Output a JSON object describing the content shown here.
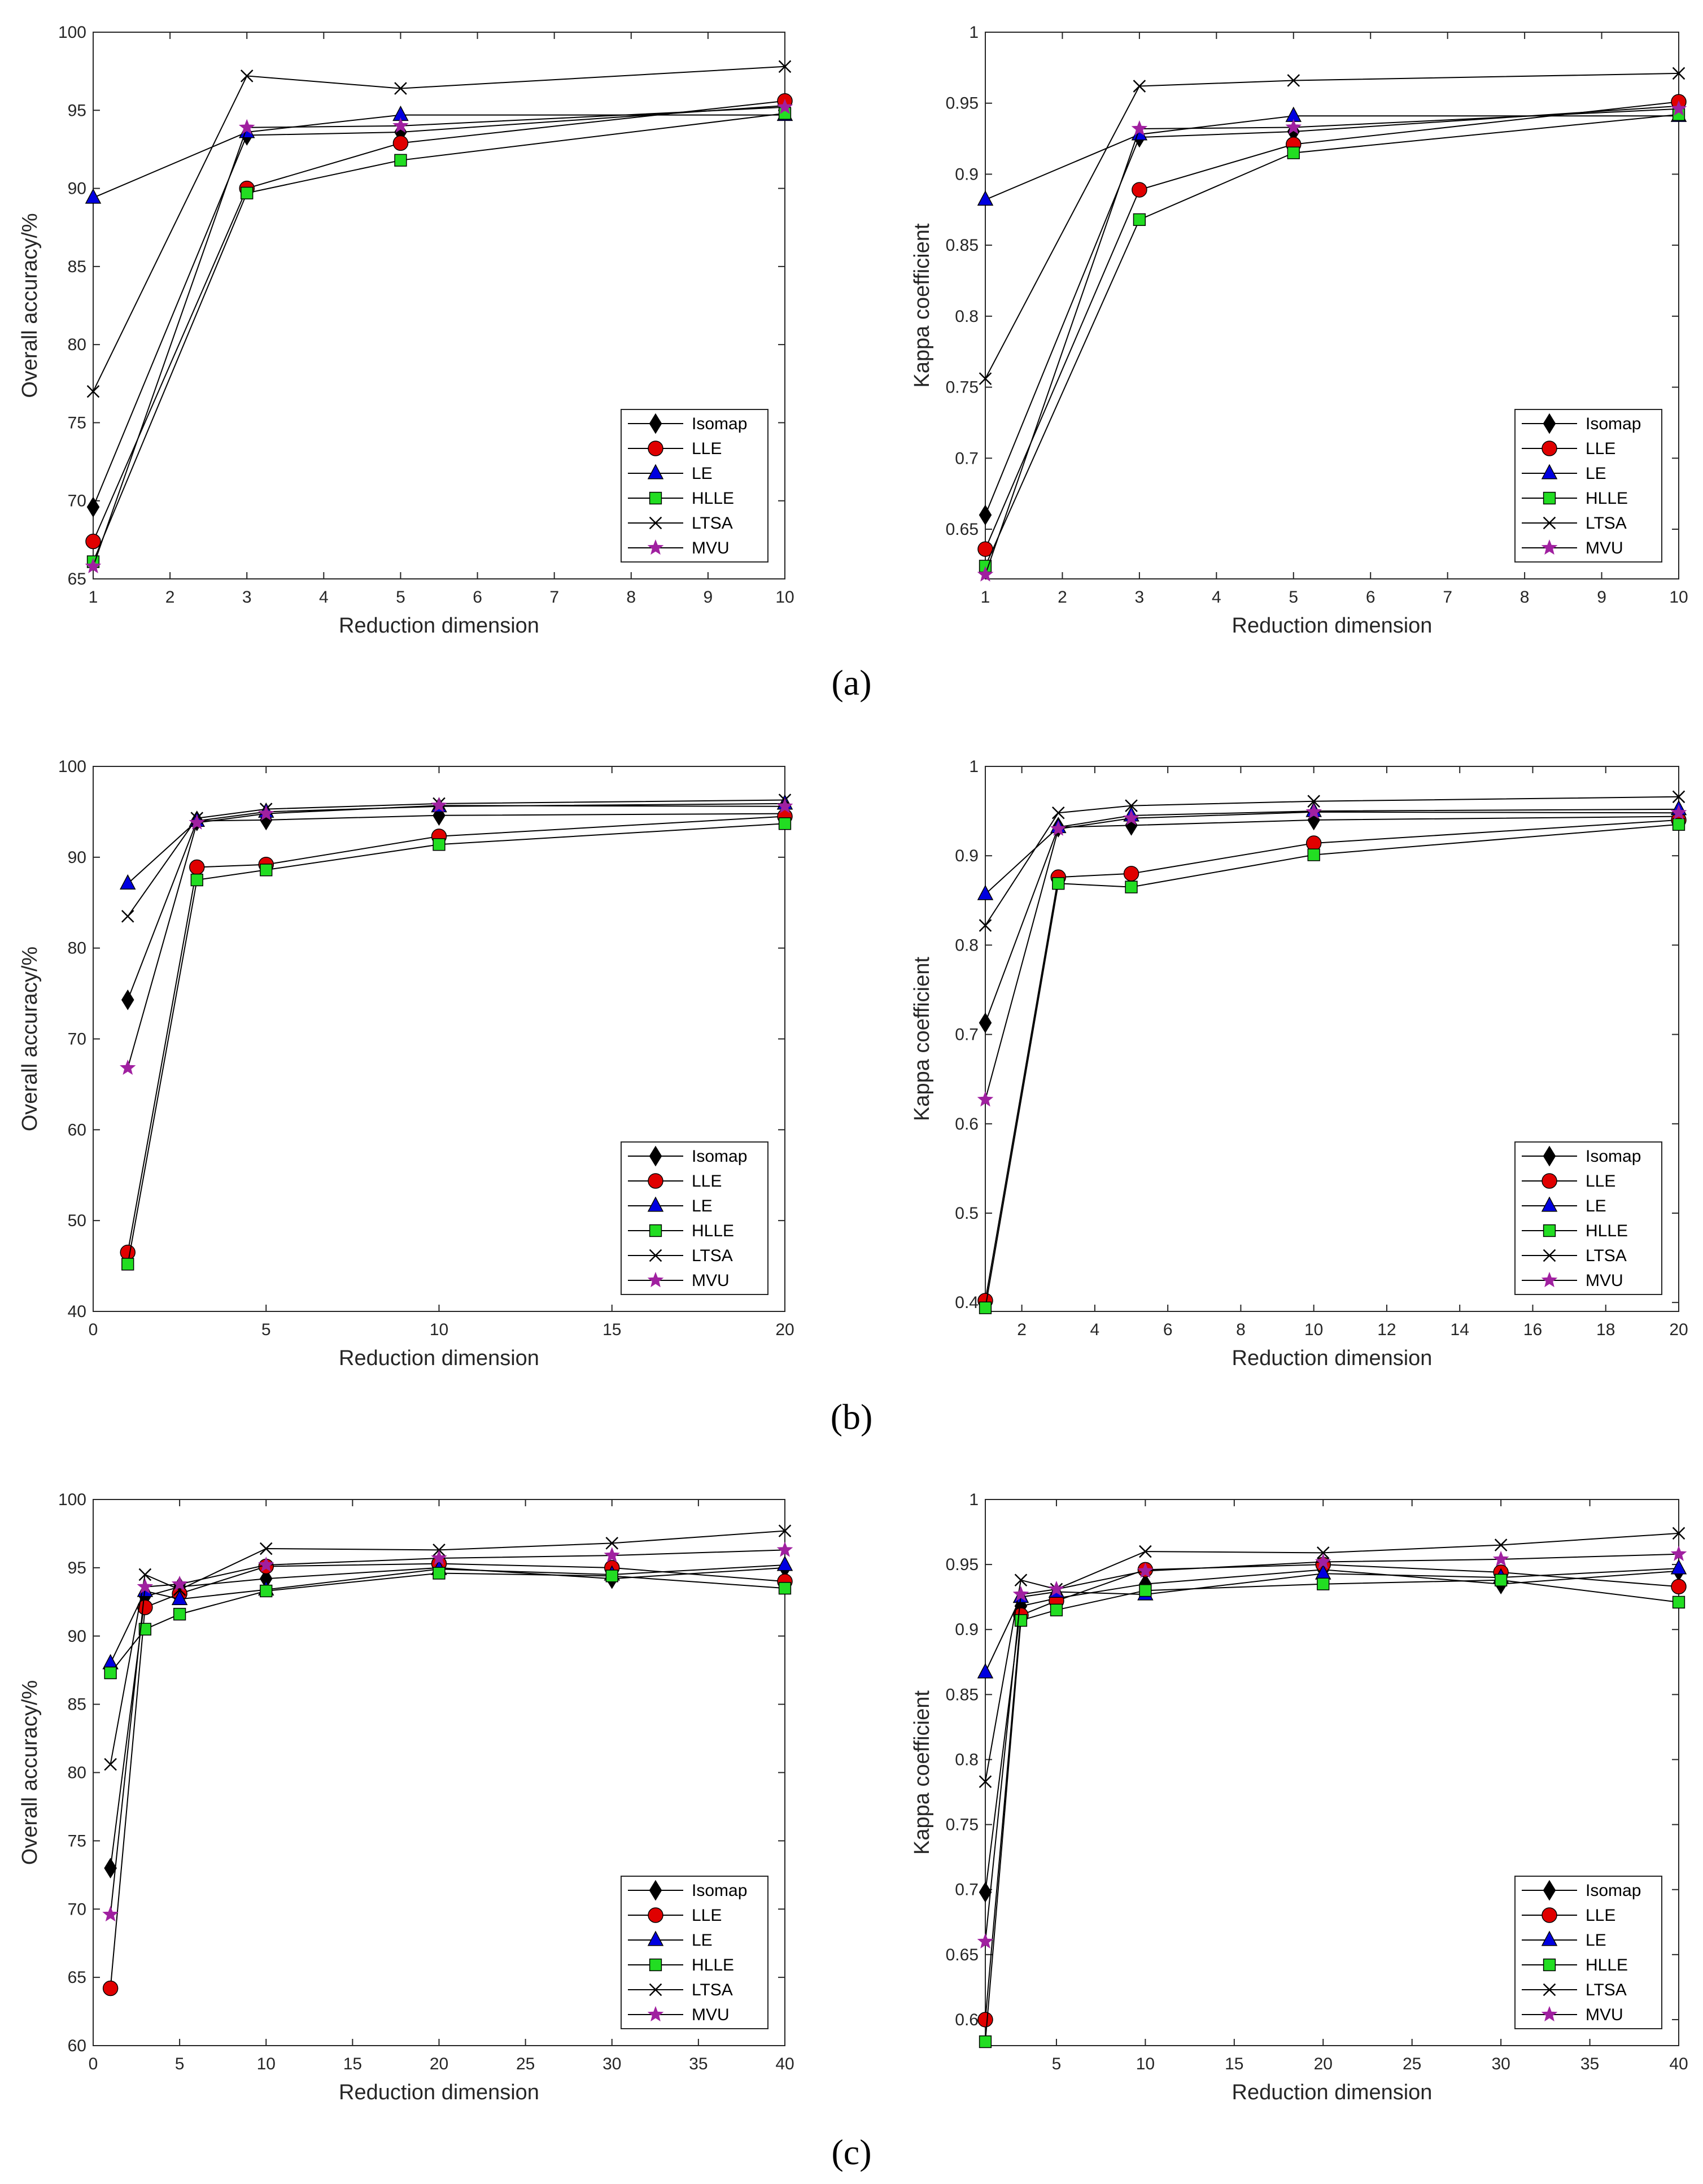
{
  "legend_style": {
    "Isomap": {
      "marker": "diamond",
      "fill": "#000000"
    },
    "LLE": {
      "marker": "circle",
      "fill": "#e00000"
    },
    "LE": {
      "marker": "triangle",
      "fill": "#0000e0"
    },
    "HLLE": {
      "marker": "square",
      "fill": "#22dd22"
    },
    "LTSA": {
      "marker": "x",
      "fill": "#000000"
    },
    "MVU": {
      "marker": "star",
      "fill": "#a020a0"
    }
  },
  "panel_labels": [
    "(a)",
    "(b)",
    "(c)"
  ],
  "chart_data": [
    {
      "type": "line",
      "panel": "a",
      "xlabel": "Reduction dimension",
      "ylabel": "Overall accuracy/%",
      "xlim": [
        1,
        10
      ],
      "ylim": [
        65,
        100
      ],
      "xticks": [
        1,
        2,
        3,
        4,
        5,
        6,
        7,
        8,
        9,
        10
      ],
      "xtick_labels": [
        "1",
        "2",
        "3",
        "4",
        "5",
        "6",
        "7",
        "8",
        "9",
        "10"
      ],
      "yticks": [
        65,
        70,
        75,
        80,
        85,
        90,
        95,
        100
      ],
      "ytick_labels": [
        "65",
        "70",
        "75",
        "80",
        "85",
        "90",
        "95",
        "100"
      ],
      "x": [
        1,
        3,
        5,
        10
      ],
      "series": [
        {
          "name": "Isomap",
          "values": [
            69.6,
            93.4,
            93.6,
            95.3
          ]
        },
        {
          "name": "LLE",
          "values": [
            67.4,
            90.0,
            92.9,
            95.6
          ]
        },
        {
          "name": "LE",
          "values": [
            89.4,
            93.6,
            94.7,
            94.7
          ]
        },
        {
          "name": "HLLE",
          "values": [
            66.1,
            89.7,
            91.8,
            94.8
          ]
        },
        {
          "name": "LTSA",
          "values": [
            77.0,
            97.2,
            96.4,
            97.8
          ]
        },
        {
          "name": "MVU",
          "values": [
            65.8,
            93.9,
            94.0,
            95.2
          ]
        }
      ]
    },
    {
      "type": "line",
      "panel": "a",
      "xlabel": "Reduction dimension",
      "ylabel": "Kappa coefficient",
      "xlim": [
        1,
        10
      ],
      "ylim": [
        0.615,
        1.0
      ],
      "xticks": [
        1,
        2,
        3,
        4,
        5,
        6,
        7,
        8,
        9,
        10
      ],
      "xtick_labels": [
        "1",
        "2",
        "3",
        "4",
        "5",
        "6",
        "7",
        "8",
        "9",
        "10"
      ],
      "yticks": [
        0.65,
        0.7,
        0.75,
        0.8,
        0.85,
        0.9,
        0.95,
        1
      ],
      "ytick_labels": [
        "0.65",
        "0.7",
        "0.75",
        "0.8",
        "0.85",
        "0.9",
        "0.95",
        "1"
      ],
      "x": [
        1,
        3,
        5,
        10
      ],
      "series": [
        {
          "name": "Isomap",
          "values": [
            0.66,
            0.926,
            0.93,
            0.948
          ]
        },
        {
          "name": "LLE",
          "values": [
            0.636,
            0.889,
            0.921,
            0.951
          ]
        },
        {
          "name": "LE",
          "values": [
            0.882,
            0.928,
            0.941,
            0.941
          ]
        },
        {
          "name": "HLLE",
          "values": [
            0.624,
            0.868,
            0.915,
            0.942
          ]
        },
        {
          "name": "LTSA",
          "values": [
            0.756,
            0.962,
            0.966,
            0.971
          ]
        },
        {
          "name": "MVU",
          "values": [
            0.618,
            0.932,
            0.933,
            0.946
          ]
        }
      ]
    },
    {
      "type": "line",
      "panel": "b",
      "xlabel": "Reduction dimension",
      "ylabel": "Overall accuracy/%",
      "xlim": [
        0,
        20
      ],
      "ylim": [
        40,
        100
      ],
      "xticks": [
        0,
        5,
        10,
        15,
        20
      ],
      "xtick_labels": [
        "0",
        "5",
        "10",
        "15",
        "20"
      ],
      "yticks": [
        40,
        50,
        60,
        70,
        80,
        90,
        100
      ],
      "ytick_labels": [
        "40",
        "50",
        "60",
        "70",
        "80",
        "90",
        "100"
      ],
      "x": [
        1,
        3,
        5,
        10,
        20
      ],
      "series": [
        {
          "name": "Isomap",
          "values": [
            74.3,
            94.0,
            94.1,
            94.6,
            94.8
          ]
        },
        {
          "name": "LLE",
          "values": [
            46.5,
            88.9,
            89.2,
            92.3,
            94.5
          ]
        },
        {
          "name": "LE",
          "values": [
            87.1,
            94.0,
            95.0,
            95.6,
            95.9
          ]
        },
        {
          "name": "HLLE",
          "values": [
            45.2,
            87.5,
            88.6,
            91.4,
            93.7
          ]
        },
        {
          "name": "LTSA",
          "values": [
            83.5,
            94.3,
            95.3,
            95.9,
            96.3
          ]
        },
        {
          "name": "MVU",
          "values": [
            66.8,
            93.8,
            94.8,
            95.7,
            95.6
          ]
        }
      ]
    },
    {
      "type": "line",
      "panel": "b",
      "xlabel": "Reduction dimension",
      "ylabel": "Kappa coefficient",
      "xlim": [
        1,
        20
      ],
      "ylim": [
        0.39,
        1.0
      ],
      "xticks": [
        2,
        4,
        6,
        8,
        10,
        12,
        14,
        16,
        18,
        20
      ],
      "xtick_labels": [
        "2",
        "4",
        "6",
        "8",
        "10",
        "12",
        "14",
        "16",
        "18",
        "20"
      ],
      "yticks": [
        0.4,
        0.5,
        0.6,
        0.7,
        0.8,
        0.9,
        1
      ],
      "ytick_labels": [
        "0.4",
        "0.5",
        "0.6",
        "0.7",
        "0.8",
        "0.9",
        "1"
      ],
      "x": [
        1,
        3,
        5,
        10,
        20
      ],
      "series": [
        {
          "name": "Isomap",
          "values": [
            0.713,
            0.932,
            0.934,
            0.94,
            0.944
          ]
        },
        {
          "name": "LLE",
          "values": [
            0.402,
            0.876,
            0.88,
            0.914,
            0.94
          ]
        },
        {
          "name": "LE",
          "values": [
            0.857,
            0.932,
            0.945,
            0.95,
            0.952
          ]
        },
        {
          "name": "HLLE",
          "values": [
            0.394,
            0.869,
            0.865,
            0.901,
            0.935
          ]
        },
        {
          "name": "LTSA",
          "values": [
            0.822,
            0.948,
            0.956,
            0.961,
            0.966
          ]
        },
        {
          "name": "MVU",
          "values": [
            0.627,
            0.93,
            0.942,
            0.949,
            0.948
          ]
        }
      ]
    },
    {
      "type": "line",
      "panel": "c",
      "xlabel": "Reduction dimension",
      "ylabel": "Overall accuracy/%",
      "xlim": [
        0,
        40
      ],
      "ylim": [
        60,
        100
      ],
      "xticks": [
        0,
        5,
        10,
        15,
        20,
        25,
        30,
        35,
        40
      ],
      "xtick_labels": [
        "0",
        "5",
        "10",
        "15",
        "20",
        "25",
        "30",
        "35",
        "40"
      ],
      "yticks": [
        60,
        65,
        70,
        75,
        80,
        85,
        90,
        95,
        100
      ],
      "ytick_labels": [
        "60",
        "65",
        "70",
        "75",
        "80",
        "85",
        "90",
        "95",
        "100"
      ],
      "x": [
        1,
        3,
        5,
        10,
        20,
        30,
        40
      ],
      "series": [
        {
          "name": "Isomap",
          "values": [
            73.0,
            92.9,
            93.6,
            94.2,
            95.0,
            94.2,
            95.0
          ]
        },
        {
          "name": "LLE",
          "values": [
            64.2,
            92.1,
            93.1,
            95.1,
            95.3,
            95.0,
            94.0
          ]
        },
        {
          "name": "LE",
          "values": [
            88.0,
            93.3,
            92.7,
            93.4,
            94.9,
            94.5,
            95.2
          ]
        },
        {
          "name": "HLLE",
          "values": [
            87.3,
            90.5,
            91.6,
            93.3,
            94.6,
            94.4,
            93.5
          ]
        },
        {
          "name": "LTSA",
          "values": [
            80.6,
            94.5,
            93.4,
            96.4,
            96.3,
            96.8,
            97.7
          ]
        },
        {
          "name": "MVU",
          "values": [
            69.6,
            93.6,
            93.8,
            95.2,
            95.7,
            95.9,
            96.3
          ]
        }
      ]
    },
    {
      "type": "line",
      "panel": "c",
      "xlabel": "Reduction dimension",
      "ylabel": "Kappa coefficient",
      "xlim": [
        1,
        40
      ],
      "ylim": [
        0.58,
        1.0
      ],
      "xticks": [
        5,
        10,
        15,
        20,
        25,
        30,
        35,
        40
      ],
      "xtick_labels": [
        "5",
        "10",
        "15",
        "20",
        "25",
        "30",
        "35",
        "40"
      ],
      "yticks": [
        0.6,
        0.65,
        0.7,
        0.75,
        0.8,
        0.85,
        0.9,
        0.95,
        1
      ],
      "ytick_labels": [
        "0.6",
        "0.65",
        "0.7",
        "0.75",
        "0.8",
        "0.85",
        "0.9",
        "0.95",
        "1"
      ],
      "x": [
        1,
        3,
        5,
        10,
        20,
        30,
        40
      ],
      "series": [
        {
          "name": "Isomap",
          "values": [
            0.698,
            0.918,
            0.924,
            0.935,
            0.946,
            0.935,
            0.945
          ]
        },
        {
          "name": "LLE",
          "values": [
            0.6,
            0.911,
            0.922,
            0.946,
            0.95,
            0.944,
            0.933
          ]
        },
        {
          "name": "LE",
          "values": [
            0.867,
            0.925,
            0.929,
            0.927,
            0.943,
            0.94,
            0.947
          ]
        },
        {
          "name": "HLLE",
          "values": [
            0.583,
            0.907,
            0.915,
            0.93,
            0.935,
            0.938,
            0.921
          ]
        },
        {
          "name": "LTSA",
          "values": [
            0.783,
            0.938,
            0.931,
            0.96,
            0.959,
            0.965,
            0.974
          ]
        },
        {
          "name": "MVU",
          "values": [
            0.66,
            0.927,
            0.931,
            0.945,
            0.952,
            0.954,
            0.958
          ]
        }
      ]
    }
  ]
}
